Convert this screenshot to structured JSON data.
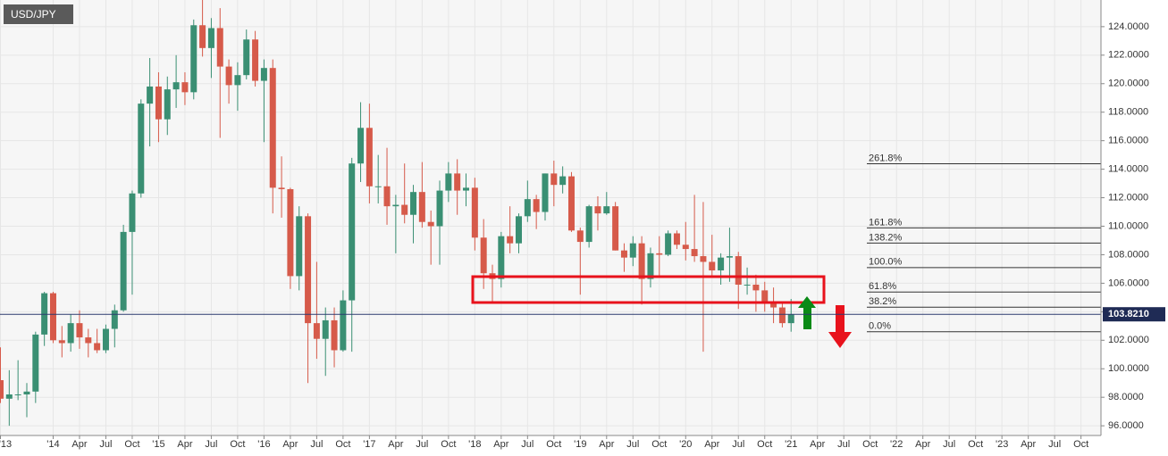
{
  "chart_data": {
    "type": "candlestick",
    "title": "USD/JPY",
    "up_color": "#3a8f73",
    "down_color": "#d65a4a",
    "x": [
      "2013-07",
      "2013-08",
      "2013-09",
      "2013-10",
      "2013-11",
      "2013-12",
      "2014-01",
      "2014-02",
      "2014-03",
      "2014-04",
      "2014-05",
      "2014-06",
      "2014-07",
      "2014-08",
      "2014-09",
      "2014-10",
      "2014-11",
      "2014-12",
      "2015-01",
      "2015-02",
      "2015-03",
      "2015-04",
      "2015-05",
      "2015-06",
      "2015-07",
      "2015-08",
      "2015-09",
      "2015-10",
      "2015-11",
      "2015-12",
      "2016-01",
      "2016-02",
      "2016-03",
      "2016-04",
      "2016-05",
      "2016-06",
      "2016-07",
      "2016-08",
      "2016-09",
      "2016-10",
      "2016-11",
      "2016-12",
      "2017-01",
      "2017-02",
      "2017-03",
      "2017-04",
      "2017-05",
      "2017-06",
      "2017-07",
      "2017-08",
      "2017-09",
      "2017-10",
      "2017-11",
      "2017-12",
      "2018-01",
      "2018-02",
      "2018-03",
      "2018-04",
      "2018-05",
      "2018-06",
      "2018-07",
      "2018-08",
      "2018-09",
      "2018-10",
      "2018-11",
      "2018-12",
      "2019-01",
      "2019-02",
      "2019-03",
      "2019-04",
      "2019-05",
      "2019-06",
      "2019-07",
      "2019-08",
      "2019-09",
      "2019-10",
      "2019-11",
      "2019-12",
      "2020-01",
      "2020-02",
      "2020-03",
      "2020-04",
      "2020-05",
      "2020-06",
      "2020-07",
      "2020-08",
      "2020-09",
      "2020-10",
      "2020-11",
      "2020-12",
      "2021-01"
    ],
    "open": [
      99.2,
      97.9,
      98.2,
      98.2,
      98.4,
      102.4,
      105.3,
      102.0,
      101.8,
      103.2,
      102.2,
      101.8,
      101.3,
      102.8,
      104.1,
      109.6,
      112.3,
      118.6,
      119.8,
      117.5,
      119.6,
      120.1,
      119.4,
      124.1,
      122.5,
      123.9,
      121.2,
      119.9,
      120.6,
      123.1,
      120.2,
      121.1,
      112.7,
      112.6,
      106.5,
      110.7,
      103.2,
      102.1,
      103.4,
      101.3,
      104.8,
      114.4,
      116.9,
      112.8,
      112.8,
      111.4,
      111.5,
      110.8,
      112.4,
      110.3,
      110.0,
      112.5,
      113.7,
      112.5,
      112.7,
      109.2,
      106.7,
      106.3,
      109.3,
      108.8,
      110.7,
      111.9,
      111.0,
      113.7,
      112.9,
      113.5,
      109.7,
      108.9,
      111.4,
      110.9,
      111.4,
      108.3,
      107.8,
      108.8,
      106.3,
      108.1,
      108.0,
      109.5,
      108.7,
      108.4,
      107.9,
      107.5,
      106.9,
      107.8,
      107.9,
      105.9,
      105.9,
      105.5,
      104.7,
      104.3,
      103.2
    ],
    "high": [
      101.5,
      99.9,
      100.6,
      99.0,
      102.6,
      105.4,
      105.4,
      103.0,
      103.8,
      104.1,
      102.8,
      102.8,
      103.1,
      104.5,
      110.1,
      112.5,
      118.9,
      121.8,
      120.8,
      120.5,
      122.0,
      120.8,
      124.5,
      125.9,
      124.6,
      125.3,
      121.7,
      121.5,
      123.8,
      123.7,
      121.7,
      121.7,
      114.9,
      112.7,
      111.4,
      110.9,
      107.5,
      104.3,
      104.3,
      105.5,
      114.8,
      118.7,
      118.6,
      115.0,
      115.5,
      112.2,
      114.4,
      112.9,
      114.5,
      111.1,
      113.2,
      114.5,
      114.7,
      113.7,
      113.4,
      110.5,
      107.3,
      109.6,
      111.4,
      110.9,
      113.2,
      112.2,
      113.7,
      114.6,
      114.2,
      113.8,
      109.9,
      111.5,
      112.1,
      112.4,
      111.7,
      108.8,
      109.3,
      109.3,
      108.5,
      109.3,
      109.7,
      109.7,
      110.3,
      112.2,
      111.7,
      109.4,
      108.1,
      109.9,
      108.2,
      107.1,
      106.6,
      106.1,
      105.7,
      104.7,
      104.9
    ],
    "low": [
      97.6,
      96.0,
      97.8,
      96.6,
      97.6,
      101.6,
      101.8,
      100.8,
      101.2,
      101.4,
      100.8,
      101.1,
      101.1,
      101.5,
      104.0,
      105.2,
      112.0,
      115.6,
      115.9,
      116.4,
      118.3,
      118.5,
      118.9,
      121.9,
      120.4,
      116.2,
      118.6,
      118.1,
      120.3,
      119.8,
      115.9,
      110.9,
      110.6,
      105.6,
      105.5,
      99.0,
      100.7,
      99.5,
      100.1,
      101.2,
      101.2,
      113.1,
      111.6,
      111.6,
      110.1,
      108.1,
      110.2,
      108.8,
      109.9,
      107.3,
      107.3,
      111.7,
      110.8,
      111.4,
      108.3,
      105.6,
      104.6,
      105.7,
      108.1,
      108.1,
      110.3,
      109.8,
      110.4,
      111.4,
      112.3,
      109.6,
      105.2,
      108.5,
      109.7,
      110.8,
      108.3,
      106.8,
      107.2,
      104.5,
      105.7,
      106.5,
      107.9,
      108.4,
      107.6,
      107.5,
      101.2,
      106.4,
      105.9,
      106.1,
      104.2,
      105.2,
      104.0,
      104.0,
      103.2,
      102.9,
      102.6
    ],
    "close": [
      97.9,
      98.2,
      98.2,
      98.4,
      102.4,
      105.3,
      102.0,
      101.8,
      103.2,
      102.2,
      101.8,
      101.3,
      102.8,
      104.1,
      109.6,
      112.3,
      118.6,
      119.8,
      117.5,
      119.6,
      120.1,
      119.4,
      124.1,
      122.5,
      123.9,
      121.2,
      119.9,
      120.6,
      123.1,
      120.2,
      121.1,
      112.7,
      112.6,
      106.5,
      110.7,
      103.2,
      102.1,
      103.4,
      101.3,
      104.8,
      114.4,
      116.9,
      112.8,
      112.8,
      111.4,
      111.5,
      110.8,
      112.4,
      110.3,
      110.0,
      112.5,
      113.7,
      112.5,
      112.7,
      109.2,
      106.7,
      106.3,
      109.3,
      108.8,
      110.7,
      111.9,
      111.0,
      113.7,
      112.9,
      113.5,
      109.7,
      108.9,
      111.4,
      110.9,
      111.4,
      108.3,
      107.8,
      108.8,
      106.3,
      108.1,
      108.0,
      109.5,
      108.7,
      108.4,
      107.9,
      107.5,
      106.9,
      107.8,
      107.9,
      105.9,
      105.9,
      105.5,
      104.7,
      104.3,
      103.2,
      103.8
    ],
    "xlim": [
      "2013-07",
      "2023-12"
    ],
    "xticks": [
      {
        "value": "2013-07",
        "label": "'13"
      },
      {
        "value": "2014-01",
        "label": "'14"
      },
      {
        "value": "2014-04",
        "label": "Apr"
      },
      {
        "value": "2014-07",
        "label": "Jul"
      },
      {
        "value": "2014-10",
        "label": "Oct"
      },
      {
        "value": "2015-01",
        "label": "'15"
      },
      {
        "value": "2015-04",
        "label": "Apr"
      },
      {
        "value": "2015-07",
        "label": "Jul"
      },
      {
        "value": "2015-10",
        "label": "Oct"
      },
      {
        "value": "2016-01",
        "label": "'16"
      },
      {
        "value": "2016-04",
        "label": "Apr"
      },
      {
        "value": "2016-07",
        "label": "Jul"
      },
      {
        "value": "2016-10",
        "label": "Oct"
      },
      {
        "value": "2017-01",
        "label": "'17"
      },
      {
        "value": "2017-04",
        "label": "Apr"
      },
      {
        "value": "2017-07",
        "label": "Jul"
      },
      {
        "value": "2017-10",
        "label": "Oct"
      },
      {
        "value": "2018-01",
        "label": "'18"
      },
      {
        "value": "2018-04",
        "label": "Apr"
      },
      {
        "value": "2018-07",
        "label": "Jul"
      },
      {
        "value": "2018-10",
        "label": "Oct"
      },
      {
        "value": "2019-01",
        "label": "'19"
      },
      {
        "value": "2019-04",
        "label": "Apr"
      },
      {
        "value": "2019-07",
        "label": "Jul"
      },
      {
        "value": "2019-10",
        "label": "Oct"
      },
      {
        "value": "2020-01",
        "label": "'20"
      },
      {
        "value": "2020-04",
        "label": "Apr"
      },
      {
        "value": "2020-07",
        "label": "Jul"
      },
      {
        "value": "2020-10",
        "label": "Oct"
      },
      {
        "value": "2021-01",
        "label": "'21"
      },
      {
        "value": "2021-04",
        "label": "Apr"
      },
      {
        "value": "2021-07",
        "label": "Jul"
      },
      {
        "value": "2021-10",
        "label": "Oct"
      },
      {
        "value": "2022-01",
        "label": "'22"
      },
      {
        "value": "2022-04",
        "label": "Apr"
      },
      {
        "value": "2022-07",
        "label": "Jul"
      },
      {
        "value": "2022-10",
        "label": "Oct"
      },
      {
        "value": "2023-01",
        "label": "'23"
      },
      {
        "value": "2023-04",
        "label": "Apr"
      },
      {
        "value": "2023-07",
        "label": "Jul"
      },
      {
        "value": "2023-10",
        "label": "Oct"
      }
    ],
    "ylim": [
      95.32,
      125.87
    ],
    "yticks": [
      {
        "value": 96,
        "label": "96.0000"
      },
      {
        "value": 98,
        "label": "98.0000"
      },
      {
        "value": 100,
        "label": "100.0000"
      },
      {
        "value": 102,
        "label": "102.0000"
      },
      {
        "value": 104,
        "label": "104.0000"
      },
      {
        "value": 106,
        "label": "106.0000"
      },
      {
        "value": 108,
        "label": "108.0000"
      },
      {
        "value": 110,
        "label": "110.0000"
      },
      {
        "value": 112,
        "label": "112.0000"
      },
      {
        "value": 114,
        "label": "114.0000"
      },
      {
        "value": 116,
        "label": "116.0000"
      },
      {
        "value": 118,
        "label": "118.0000"
      },
      {
        "value": 120,
        "label": "120.0000"
      },
      {
        "value": 122,
        "label": "122.0000"
      },
      {
        "value": 124,
        "label": "124.0000"
      }
    ],
    "grid": true,
    "last_price": {
      "value": 103.821,
      "label": "103.8210"
    },
    "fib_levels": [
      {
        "value": 114.38,
        "label": "261.8%"
      },
      {
        "value": 109.88,
        "label": "161.8%"
      },
      {
        "value": 108.82,
        "label": "138.2%"
      },
      {
        "value": 107.1,
        "label": "100.0%"
      },
      {
        "value": 105.38,
        "label": "61.8%"
      },
      {
        "value": 104.32,
        "label": "38.2%"
      },
      {
        "value": 102.6,
        "label": "0.0%"
      }
    ]
  }
}
